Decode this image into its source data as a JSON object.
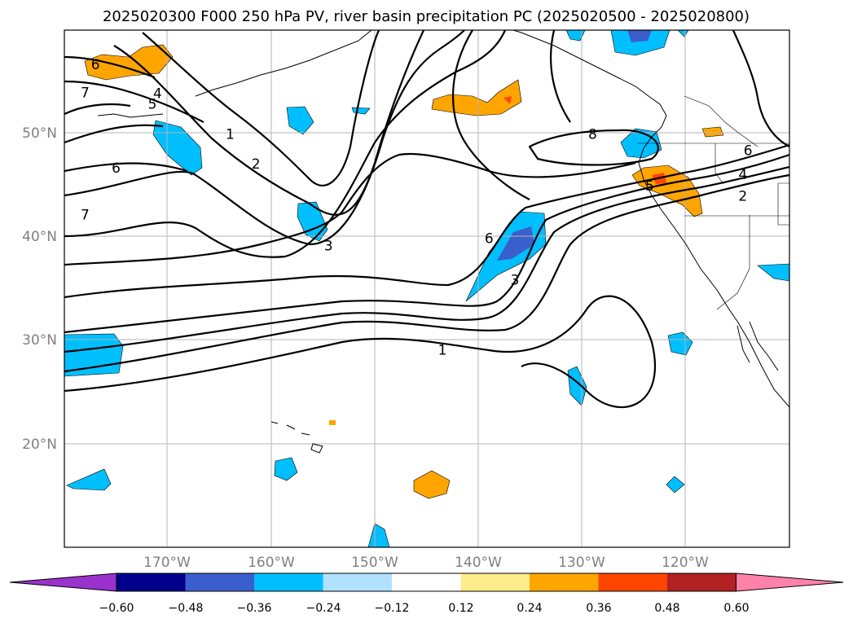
{
  "title": "2025020300 F000 250 hPa PV, river basin precipitation PC (2025020500 - 2025020800)",
  "map": {
    "lat_labels": [
      "50°N",
      "40°N",
      "30°N",
      "20°N"
    ],
    "lon_labels": [
      "170°W",
      "160°W",
      "150°W",
      "140°W",
      "130°W",
      "120°W"
    ],
    "grid": true,
    "projection": "PlateCarree",
    "extent": {
      "lon_min": -180,
      "lon_max": -110,
      "lat_min": 10,
      "lat_max": 60
    }
  },
  "colorbar": {
    "labels": [
      "−0.60",
      "−0.48",
      "−0.36",
      "−0.24",
      "−0.12",
      "0.12",
      "0.24",
      "0.36",
      "0.48",
      "0.60"
    ],
    "colors": [
      "#9932cc",
      "#00008b",
      "#3a5fcd",
      "#00bfff",
      "#b0e2ff",
      "#ffffff",
      "#ffec8b",
      "#ffa500",
      "#ff4500",
      "#b22222",
      "#ff82ab"
    ]
  },
  "pv_contour_labels": [
    {
      "text": "6",
      "lon": -177.0,
      "lat": 56.6
    },
    {
      "text": "7",
      "lon": -178.0,
      "lat": 53.9
    },
    {
      "text": "4",
      "lon": -171.0,
      "lat": 53.8
    },
    {
      "text": "5",
      "lon": -171.5,
      "lat": 52.8
    },
    {
      "text": "1",
      "lon": -164.0,
      "lat": 49.9
    },
    {
      "text": "6",
      "lon": -175.0,
      "lat": 46.6
    },
    {
      "text": "2",
      "lon": -161.5,
      "lat": 47.0
    },
    {
      "text": "7",
      "lon": -178.0,
      "lat": 42.1
    },
    {
      "text": "3",
      "lon": -154.5,
      "lat": 39.1
    },
    {
      "text": "6",
      "lon": -139.0,
      "lat": 39.8
    },
    {
      "text": "3",
      "lon": -136.5,
      "lat": 35.8
    },
    {
      "text": "1",
      "lon": -143.5,
      "lat": 29.0
    },
    {
      "text": "8",
      "lon": -129.0,
      "lat": 49.9
    },
    {
      "text": "5",
      "lon": -123.5,
      "lat": 44.9
    },
    {
      "text": "6",
      "lon": -114.0,
      "lat": 48.3
    },
    {
      "text": "4",
      "lon": -114.5,
      "lat": 46.0
    },
    {
      "text": "2",
      "lon": -114.5,
      "lat": 43.9
    }
  ]
}
